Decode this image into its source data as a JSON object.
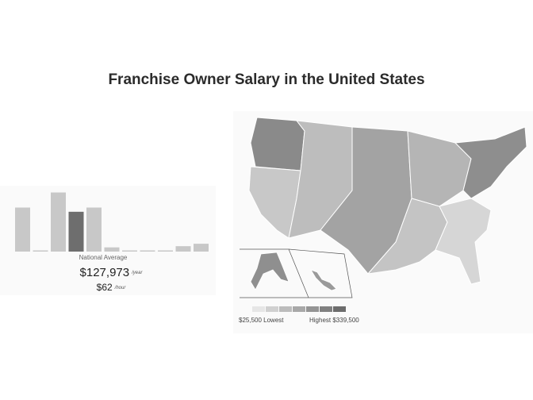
{
  "page": {
    "title": "Franchise Owner Salary in the United States"
  },
  "distribution": {
    "label": "National Average",
    "salary_year": "$127,973",
    "year_unit": "/year",
    "salary_hour": "$62",
    "hour_unit": "/hour",
    "bars": [
      {
        "value": 0.73,
        "color": "#c8c8c8"
      },
      {
        "value": 0.02,
        "color": "#c8c8c8"
      },
      {
        "value": 0.98,
        "color": "#c8c8c8"
      },
      {
        "value": 0.66,
        "color": "#6e6e6e"
      },
      {
        "value": 0.73,
        "color": "#c8c8c8"
      },
      {
        "value": 0.07,
        "color": "#c8c8c8"
      },
      {
        "value": 0.02,
        "color": "#c8c8c8"
      },
      {
        "value": 0.02,
        "color": "#c8c8c8"
      },
      {
        "value": 0.02,
        "color": "#c8c8c8"
      },
      {
        "value": 0.09,
        "color": "#c8c8c8"
      },
      {
        "value": 0.13,
        "color": "#c8c8c8"
      }
    ]
  },
  "map": {
    "legend_low": "$25,500 Lowest",
    "legend_high": "Highest $339,500",
    "legend_colors": [
      "#e6e6e6",
      "#d0d0d0",
      "#bcbcbc",
      "#a8a8a8",
      "#949494",
      "#808080",
      "#6c6c6c"
    ],
    "region_colors": {
      "northwest": "#8a8a8a",
      "west": "#c8c8c8",
      "mountain": "#bdbdbd",
      "plains": "#a3a3a3",
      "midwest": "#b5b5b5",
      "south": "#c4c4c4",
      "southeast": "#d6d6d6",
      "northeast": "#8e8e8e",
      "alaska": "#8f8f8f",
      "hawaii": "#9a9a9a"
    }
  }
}
